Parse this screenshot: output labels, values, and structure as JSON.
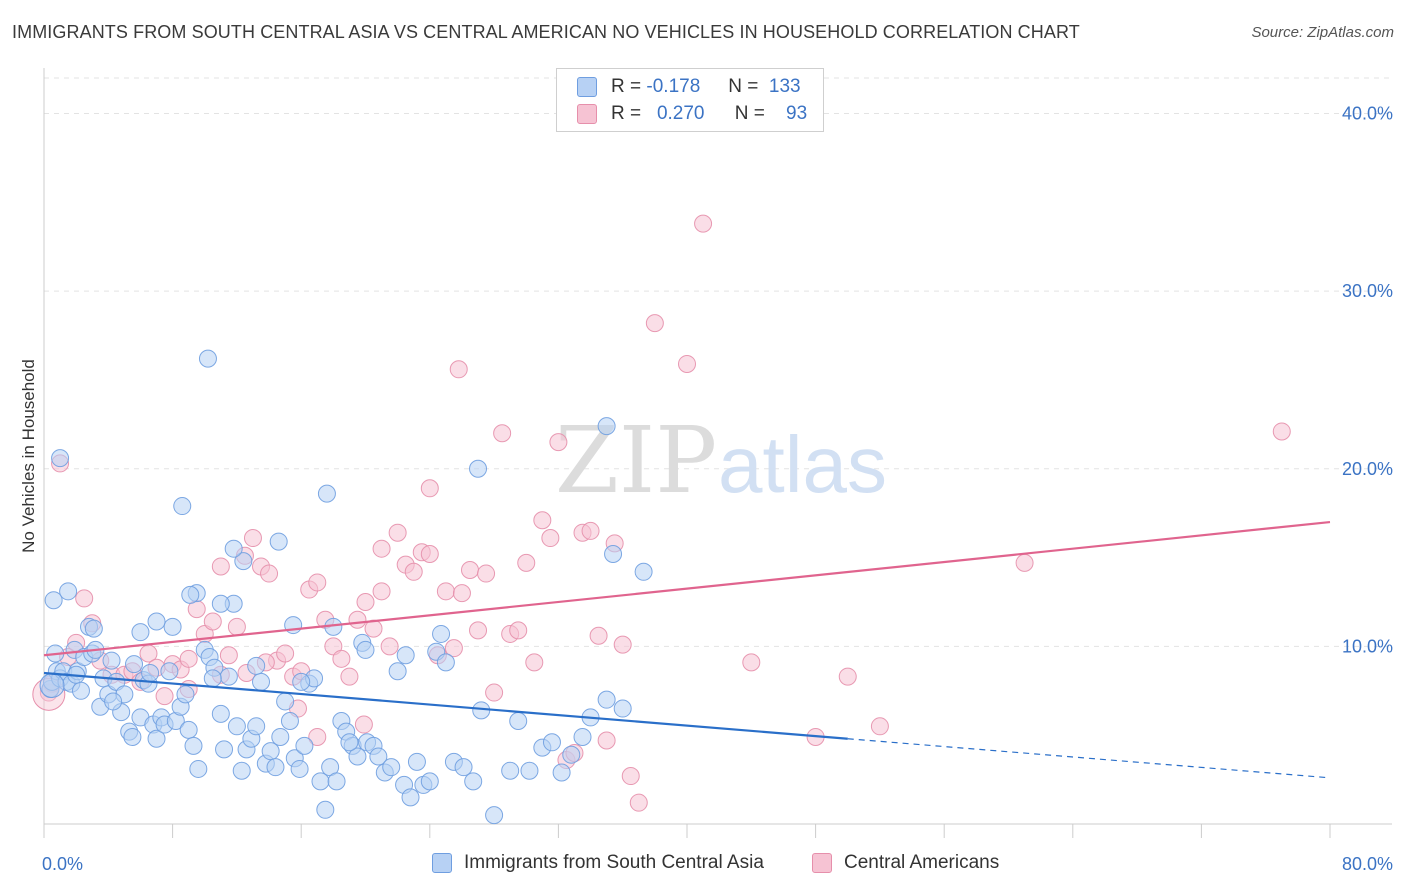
{
  "header": {
    "title": "IMMIGRANTS FROM SOUTH CENTRAL ASIA VS CENTRAL AMERICAN NO VEHICLES IN HOUSEHOLD CORRELATION CHART",
    "source": "Source: ZipAtlas.com"
  },
  "watermark": {
    "zip": "ZIP",
    "atlas": "atlas"
  },
  "legend": {
    "rows": [
      {
        "r_label": "R =",
        "r_value": "-0.178",
        "n_label": "N =",
        "n_value": "133"
      },
      {
        "r_label": "R =",
        "r_value": "0.270",
        "n_label": "N =",
        "n_value": "93"
      }
    ]
  },
  "colors": {
    "blue_fill": "#b7d1f4",
    "blue_stroke": "#6f9ee0",
    "blue_line": "#2a6fc9",
    "pink_fill": "#f6c3d3",
    "pink_stroke": "#e68fab",
    "pink_line": "#e0648e",
    "tick_label": "#3b73c4"
  },
  "chart_data": {
    "type": "scatter",
    "ylabel": "No Vehicles in Household",
    "xlim": [
      0,
      80
    ],
    "ylim": [
      0,
      42
    ],
    "x_tick_labels": [
      "0.0%",
      "80.0%"
    ],
    "y_ticks": [
      10,
      20,
      30,
      40
    ],
    "y_tick_labels": [
      "10.0%",
      "20.0%",
      "30.0%",
      "40.0%"
    ],
    "grid": "horizontal-dashed",
    "legend_position": "top-center",
    "series": [
      {
        "name": "Immigrants from South Central Asia",
        "color": "#6f9ee0",
        "trend": {
          "x0": 0,
          "y0": 8.5,
          "x1": 50,
          "y1": 4.8,
          "dashed_to_x": 80,
          "dashed_to_y": 2.6
        },
        "points": [
          [
            0.4,
            7.6
          ],
          [
            0.5,
            8.0
          ],
          [
            0.7,
            9.6
          ],
          [
            0.8,
            8.6
          ],
          [
            1.0,
            8.2
          ],
          [
            1.2,
            8.6
          ],
          [
            1.4,
            8.0
          ],
          [
            1.5,
            13.1
          ],
          [
            1.7,
            7.9
          ],
          [
            1.9,
            9.8
          ],
          [
            2.1,
            8.6
          ],
          [
            2.3,
            7.5
          ],
          [
            2.5,
            9.4
          ],
          [
            2.8,
            11.1
          ],
          [
            3.0,
            9.6
          ],
          [
            3.2,
            9.8
          ],
          [
            3.5,
            6.6
          ],
          [
            3.7,
            8.2
          ],
          [
            4.0,
            7.3
          ],
          [
            4.2,
            9.2
          ],
          [
            4.5,
            8.0
          ],
          [
            4.8,
            6.3
          ],
          [
            5.0,
            7.3
          ],
          [
            5.3,
            5.2
          ],
          [
            5.6,
            9.0
          ],
          [
            6.0,
            6.0
          ],
          [
            6.2,
            8.1
          ],
          [
            6.5,
            7.9
          ],
          [
            6.8,
            5.6
          ],
          [
            7.0,
            4.8
          ],
          [
            7.3,
            6.0
          ],
          [
            7.5,
            5.6
          ],
          [
            7.8,
            8.6
          ],
          [
            8.0,
            11.1
          ],
          [
            8.2,
            5.8
          ],
          [
            8.5,
            6.6
          ],
          [
            8.8,
            7.3
          ],
          [
            9.0,
            5.3
          ],
          [
            9.3,
            4.4
          ],
          [
            9.6,
            3.1
          ],
          [
            10.0,
            9.8
          ],
          [
            10.3,
            9.4
          ],
          [
            10.6,
            8.8
          ],
          [
            11.0,
            6.2
          ],
          [
            11.2,
            4.2
          ],
          [
            11.5,
            8.3
          ],
          [
            11.8,
            12.4
          ],
          [
            12.0,
            5.5
          ],
          [
            12.3,
            3.0
          ],
          [
            12.6,
            4.2
          ],
          [
            12.9,
            4.8
          ],
          [
            13.2,
            5.5
          ],
          [
            13.5,
            8.0
          ],
          [
            13.8,
            3.4
          ],
          [
            14.1,
            4.1
          ],
          [
            14.4,
            3.2
          ],
          [
            14.7,
            4.9
          ],
          [
            15.0,
            6.9
          ],
          [
            15.3,
            5.8
          ],
          [
            15.6,
            3.7
          ],
          [
            15.9,
            3.1
          ],
          [
            16.2,
            4.4
          ],
          [
            16.5,
            7.9
          ],
          [
            16.8,
            8.2
          ],
          [
            17.2,
            2.4
          ],
          [
            17.5,
            0.8
          ],
          [
            17.8,
            3.2
          ],
          [
            18.2,
            2.4
          ],
          [
            18.5,
            5.8
          ],
          [
            18.8,
            5.2
          ],
          [
            19.2,
            4.4
          ],
          [
            19.5,
            3.8
          ],
          [
            19.8,
            10.2
          ],
          [
            20.1,
            4.6
          ],
          [
            20.5,
            4.4
          ],
          [
            20.8,
            3.8
          ],
          [
            21.2,
            2.9
          ],
          [
            21.6,
            3.2
          ],
          [
            22.0,
            8.6
          ],
          [
            22.4,
            2.2
          ],
          [
            22.8,
            1.5
          ],
          [
            23.2,
            3.5
          ],
          [
            23.6,
            2.2
          ],
          [
            24.0,
            2.4
          ],
          [
            24.4,
            9.7
          ],
          [
            25.0,
            9.1
          ],
          [
            25.5,
            3.5
          ],
          [
            26.1,
            3.2
          ],
          [
            26.7,
            2.4
          ],
          [
            27.2,
            6.4
          ],
          [
            28.0,
            0.5
          ],
          [
            29.0,
            3.0
          ],
          [
            29.5,
            5.8
          ],
          [
            30.2,
            3.0
          ],
          [
            31.0,
            4.3
          ],
          [
            31.6,
            4.6
          ],
          [
            32.2,
            2.9
          ],
          [
            32.8,
            3.9
          ],
          [
            33.5,
            4.9
          ],
          [
            34.0,
            6.0
          ],
          [
            35.0,
            7.0
          ],
          [
            36.0,
            6.5
          ],
          [
            1.0,
            20.6
          ],
          [
            10.2,
            26.2
          ],
          [
            8.6,
            17.9
          ],
          [
            12.4,
            14.8
          ],
          [
            14.6,
            15.9
          ],
          [
            11.8,
            15.5
          ],
          [
            17.6,
            18.6
          ],
          [
            27.0,
            20.0
          ],
          [
            35.0,
            22.4
          ],
          [
            37.3,
            14.2
          ],
          [
            35.4,
            15.2
          ],
          [
            0.6,
            12.6
          ],
          [
            3.1,
            11.0
          ],
          [
            6.0,
            10.8
          ],
          [
            9.5,
            13.0
          ],
          [
            11.0,
            12.4
          ],
          [
            15.5,
            11.2
          ],
          [
            18.0,
            11.1
          ],
          [
            20.0,
            9.8
          ],
          [
            22.5,
            9.5
          ],
          [
            24.7,
            10.7
          ],
          [
            13.2,
            8.9
          ],
          [
            5.5,
            4.9
          ],
          [
            7.0,
            11.4
          ],
          [
            9.1,
            12.9
          ],
          [
            10.5,
            8.2
          ],
          [
            19.0,
            4.6
          ],
          [
            16.0,
            8.0
          ],
          [
            2.0,
            8.4
          ],
          [
            4.3,
            6.9
          ],
          [
            6.6,
            8.5
          ]
        ]
      },
      {
        "name": "Central Americans",
        "color": "#e68fab",
        "trend": {
          "x0": 0,
          "y0": 9.5,
          "x1": 80,
          "y1": 17.0
        },
        "points": [
          [
            0.3,
            7.4
          ],
          [
            0.5,
            7.9
          ],
          [
            1.0,
            20.3
          ],
          [
            1.5,
            9.4
          ],
          [
            2.0,
            10.2
          ],
          [
            2.5,
            12.7
          ],
          [
            3.0,
            11.3
          ],
          [
            3.5,
            9.2
          ],
          [
            4.2,
            8.4
          ],
          [
            5.0,
            8.4
          ],
          [
            5.5,
            8.6
          ],
          [
            6.0,
            8.0
          ],
          [
            6.5,
            9.6
          ],
          [
            7.0,
            8.8
          ],
          [
            7.5,
            7.2
          ],
          [
            8.0,
            9.0
          ],
          [
            8.5,
            8.7
          ],
          [
            9.0,
            7.6
          ],
          [
            9.5,
            12.1
          ],
          [
            10.0,
            10.7
          ],
          [
            10.5,
            11.4
          ],
          [
            11.0,
            8.4
          ],
          [
            11.5,
            9.5
          ],
          [
            12.0,
            11.1
          ],
          [
            12.5,
            15.1
          ],
          [
            13.0,
            16.1
          ],
          [
            13.5,
            14.5
          ],
          [
            14.0,
            14.1
          ],
          [
            14.5,
            9.2
          ],
          [
            15.0,
            9.6
          ],
          [
            15.5,
            8.3
          ],
          [
            16.0,
            8.6
          ],
          [
            16.5,
            13.2
          ],
          [
            17.0,
            13.6
          ],
          [
            17.5,
            11.5
          ],
          [
            18.0,
            10.0
          ],
          [
            18.5,
            9.3
          ],
          [
            19.0,
            8.3
          ],
          [
            19.5,
            11.5
          ],
          [
            20.0,
            12.5
          ],
          [
            20.5,
            11.0
          ],
          [
            21.0,
            13.1
          ],
          [
            21.5,
            10.0
          ],
          [
            22.0,
            16.4
          ],
          [
            22.5,
            14.6
          ],
          [
            23.0,
            14.2
          ],
          [
            23.5,
            15.3
          ],
          [
            24.0,
            18.9
          ],
          [
            24.5,
            9.5
          ],
          [
            25.0,
            13.1
          ],
          [
            25.5,
            9.9
          ],
          [
            26.0,
            13.0
          ],
          [
            26.5,
            14.3
          ],
          [
            27.0,
            10.9
          ],
          [
            27.5,
            14.1
          ],
          [
            28.0,
            7.4
          ],
          [
            28.5,
            22.0
          ],
          [
            29.0,
            10.7
          ],
          [
            29.5,
            10.9
          ],
          [
            30.0,
            14.7
          ],
          [
            30.5,
            9.1
          ],
          [
            31.0,
            17.1
          ],
          [
            31.5,
            16.1
          ],
          [
            32.0,
            21.5
          ],
          [
            32.5,
            3.6
          ],
          [
            33.0,
            4.0
          ],
          [
            33.5,
            16.4
          ],
          [
            34.0,
            16.5
          ],
          [
            34.5,
            10.6
          ],
          [
            35.0,
            4.7
          ],
          [
            35.5,
            15.8
          ],
          [
            36.0,
            10.1
          ],
          [
            36.5,
            2.7
          ],
          [
            37.0,
            1.2
          ],
          [
            38.0,
            28.2
          ],
          [
            40.0,
            25.9
          ],
          [
            41.0,
            33.8
          ],
          [
            25.8,
            25.6
          ],
          [
            24.0,
            15.2
          ],
          [
            44.0,
            9.1
          ],
          [
            48.0,
            4.9
          ],
          [
            50.0,
            8.3
          ],
          [
            52.0,
            5.5
          ],
          [
            61.0,
            14.7
          ],
          [
            77.0,
            22.1
          ],
          [
            17.0,
            4.9
          ],
          [
            15.8,
            6.5
          ],
          [
            11.0,
            14.5
          ],
          [
            9.0,
            9.3
          ],
          [
            19.9,
            5.6
          ],
          [
            12.6,
            8.5
          ],
          [
            21.0,
            15.5
          ],
          [
            13.8,
            9.1
          ]
        ]
      }
    ]
  },
  "bottom_legend": [
    {
      "label": "Immigrants from South Central Asia"
    },
    {
      "label": "Central Americans"
    }
  ]
}
